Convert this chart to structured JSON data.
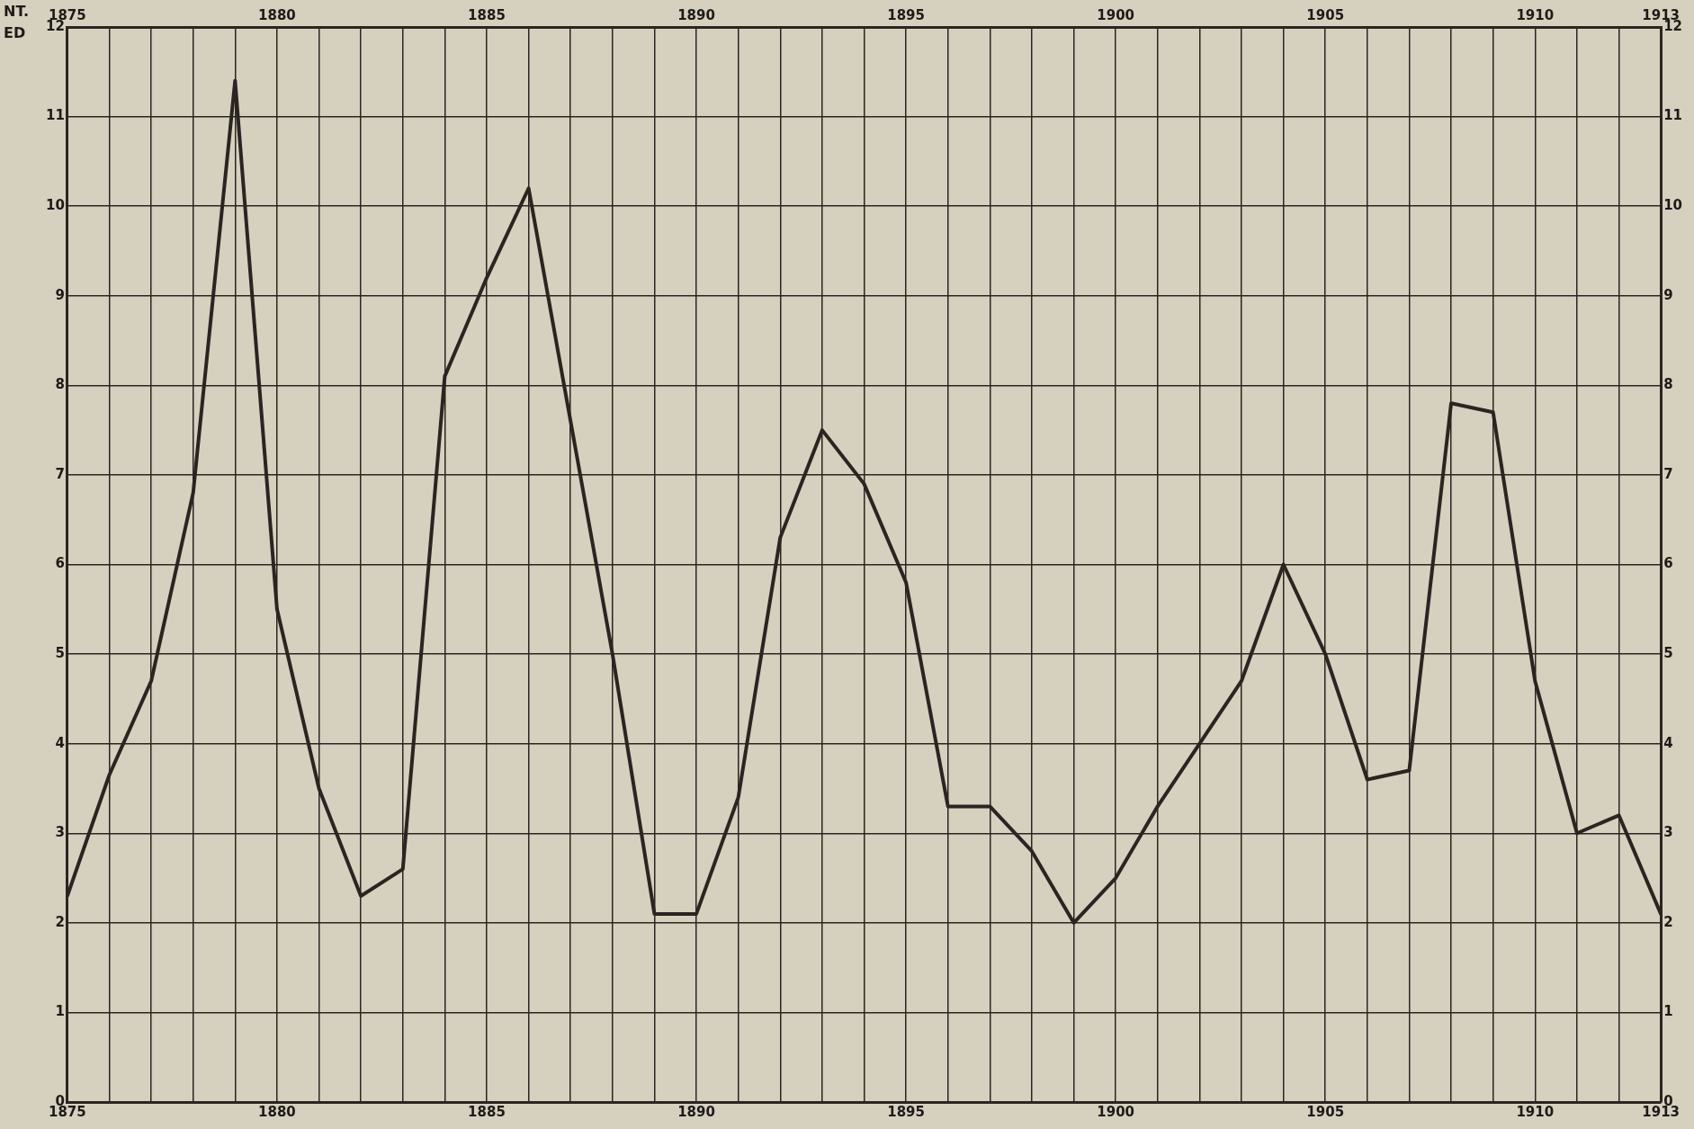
{
  "chart_data": {
    "type": "line",
    "x": [
      1875,
      1876,
      1877,
      1878,
      1879,
      1880,
      1881,
      1882,
      1883,
      1884,
      1885,
      1886,
      1887,
      1888,
      1889,
      1890,
      1891,
      1892,
      1893,
      1894,
      1895,
      1896,
      1897,
      1898,
      1899,
      1900,
      1901,
      1902,
      1903,
      1904,
      1905,
      1906,
      1907,
      1908,
      1909,
      1910,
      1911,
      1912,
      1913
    ],
    "series": [
      {
        "color": "#2a2521",
        "values": [
          2.3,
          3.65,
          4.7,
          6.8,
          11.4,
          5.5,
          3.5,
          2.3,
          2.6,
          8.1,
          9.2,
          10.2,
          7.6,
          5.0,
          2.1,
          2.1,
          3.4,
          6.3,
          7.5,
          6.9,
          5.8,
          3.3,
          3.3,
          2.8,
          2.0,
          2.5,
          3.3,
          4.0,
          4.7,
          6.0,
          5.0,
          3.6,
          3.7,
          7.8,
          7.7,
          4.7,
          3.0,
          3.2,
          2.1
        ]
      }
    ],
    "xlim": [
      1875,
      1913
    ],
    "xticks": [
      1875,
      {
        "value": 1876,
        "label": null
      },
      {
        "value": 1877,
        "label": null
      },
      {
        "value": 1878,
        "label": null
      },
      {
        "value": 1879,
        "label": null
      },
      1880,
      {
        "value": 1881,
        "label": null
      },
      {
        "value": 1882,
        "label": null
      },
      {
        "value": 1883,
        "label": null
      },
      {
        "value": 1884,
        "label": null
      },
      1885,
      {
        "value": 1886,
        "label": null
      },
      {
        "value": 1887,
        "label": null
      },
      {
        "value": 1888,
        "label": null
      },
      {
        "value": 1889,
        "label": null
      },
      1890,
      {
        "value": 1891,
        "label": null
      },
      {
        "value": 1892,
        "label": null
      },
      {
        "value": 1893,
        "label": null
      },
      {
        "value": 1894,
        "label": null
      },
      1895,
      {
        "value": 1896,
        "label": null
      },
      {
        "value": 1897,
        "label": null
      },
      {
        "value": 1898,
        "label": null
      },
      {
        "value": 1899,
        "label": null
      },
      1900,
      {
        "value": 1901,
        "label": null
      },
      {
        "value": 1902,
        "label": null
      },
      {
        "value": 1903,
        "label": null
      },
      {
        "value": 1904,
        "label": null
      },
      1905,
      {
        "value": 1906,
        "label": null
      },
      {
        "value": 1907,
        "label": null
      },
      {
        "value": 1908,
        "label": null
      },
      {
        "value": 1909,
        "label": null
      },
      1910,
      {
        "value": 1911,
        "label": null
      },
      {
        "value": 1912,
        "label": null
      },
      1913
    ],
    "x2lim": [
      1875,
      1913
    ],
    "x2ticks": [
      1875,
      {
        "value": 1876,
        "label": null
      },
      {
        "value": 1877,
        "label": null
      },
      {
        "value": 1878,
        "label": null
      },
      {
        "value": 1879,
        "label": null
      },
      1880,
      {
        "value": 1881,
        "label": null
      },
      {
        "value": 1882,
        "label": null
      },
      {
        "value": 1883,
        "label": null
      },
      {
        "value": 1884,
        "label": null
      },
      1885,
      {
        "value": 1886,
        "label": null
      },
      {
        "value": 1887,
        "label": null
      },
      {
        "value": 1888,
        "label": null
      },
      {
        "value": 1889,
        "label": null
      },
      1890,
      {
        "value": 1891,
        "label": null
      },
      {
        "value": 1892,
        "label": null
      },
      {
        "value": 1893,
        "label": null
      },
      {
        "value": 1894,
        "label": null
      },
      1895,
      {
        "value": 1896,
        "label": null
      },
      {
        "value": 1897,
        "label": null
      },
      {
        "value": 1898,
        "label": null
      },
      {
        "value": 1899,
        "label": null
      },
      1900,
      {
        "value": 1901,
        "label": null
      },
      {
        "value": 1902,
        "label": null
      },
      {
        "value": 1903,
        "label": null
      },
      {
        "value": 1904,
        "label": null
      },
      1905,
      {
        "value": 1906,
        "label": null
      },
      {
        "value": 1907,
        "label": null
      },
      {
        "value": 1908,
        "label": null
      },
      {
        "value": 1909,
        "label": null
      },
      1910,
      {
        "value": 1911,
        "label": null
      },
      {
        "value": 1912,
        "label": null
      },
      1913
    ],
    "ylim": [
      0,
      12
    ],
    "yticks": [
      0,
      1,
      2,
      3,
      4,
      5,
      6,
      7,
      8,
      9,
      10,
      11,
      12
    ],
    "y2lim": [
      0,
      12
    ],
    "y2ticks": [
      0,
      1,
      2,
      3,
      4,
      5,
      6,
      7,
      8,
      9,
      10,
      11,
      12
    ],
    "annotations": [
      "NT.",
      "ED"
    ],
    "grid": true,
    "legend": false,
    "marker": "none",
    "line_style": "solid"
  }
}
